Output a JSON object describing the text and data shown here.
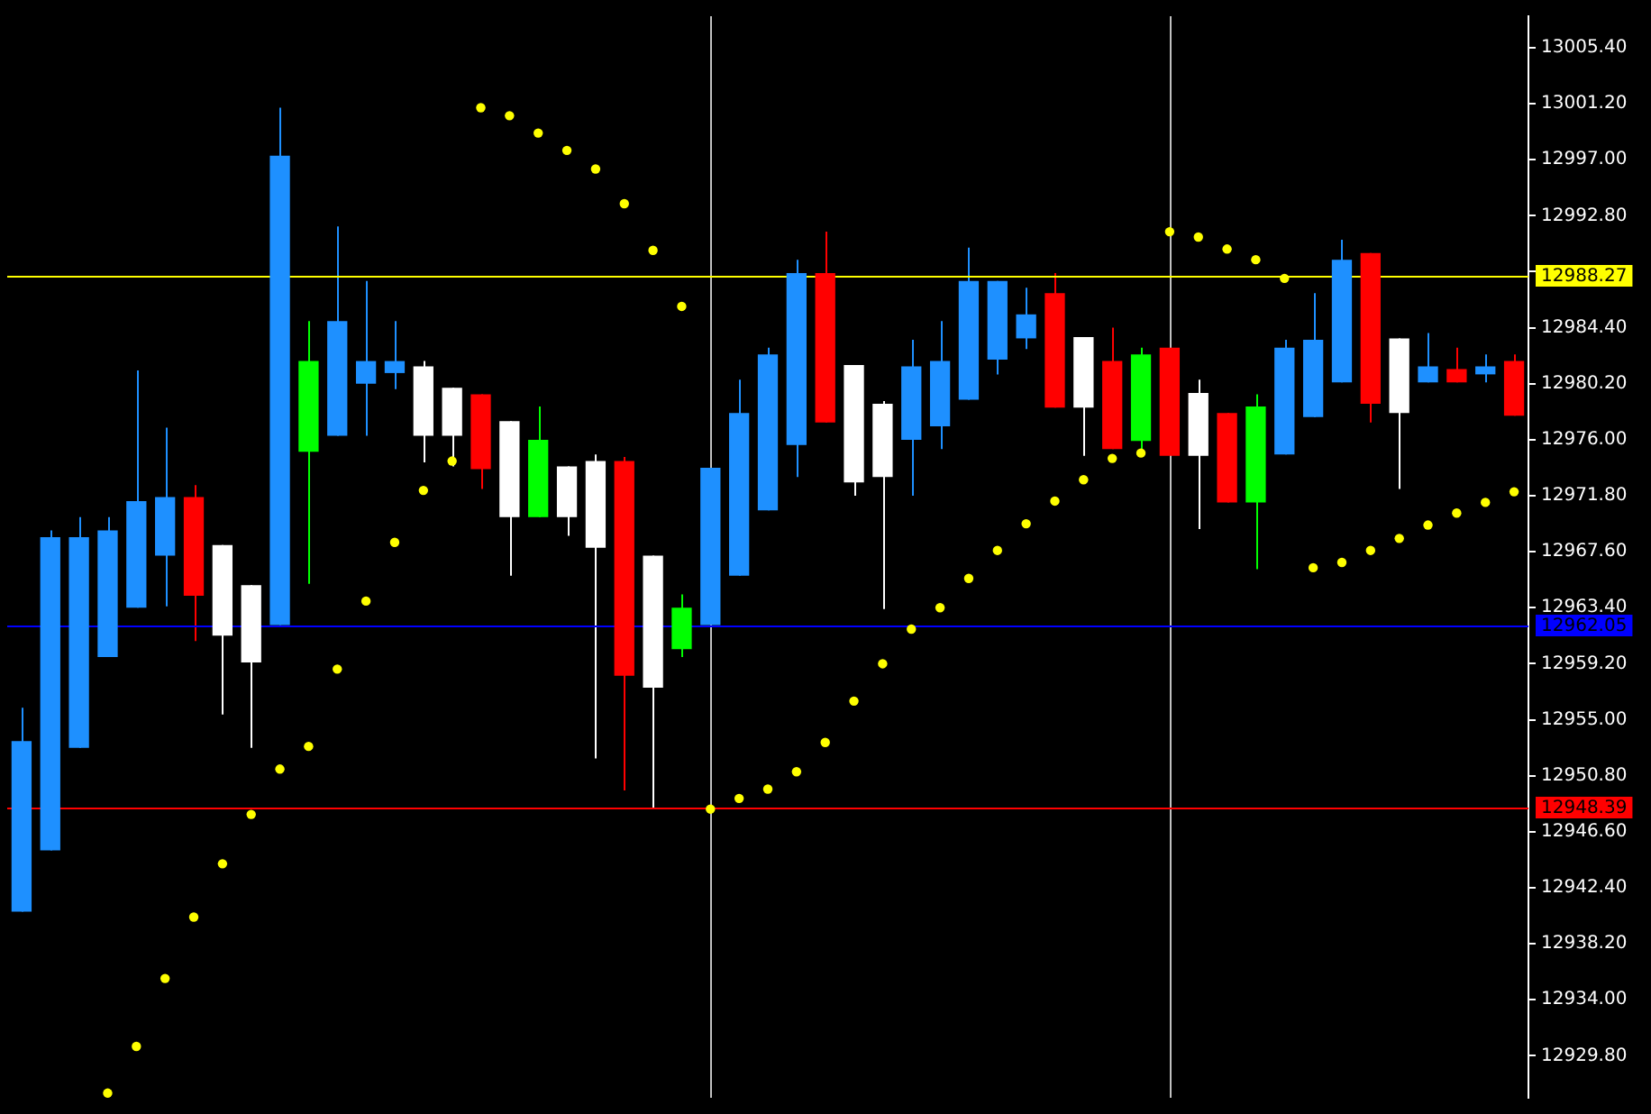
{
  "chart_data": {
    "type": "candlestick",
    "categories": [
      null,
      null,
      null,
      null,
      null,
      null,
      null,
      null,
      null,
      null,
      null,
      null,
      null,
      null,
      null,
      null,
      null,
      null,
      null,
      null,
      null,
      null,
      null,
      null,
      null,
      null,
      null,
      null,
      null,
      null,
      null,
      null,
      null,
      null,
      null,
      null,
      null,
      null,
      null,
      null,
      null,
      null,
      null,
      null,
      null,
      null,
      null,
      null,
      null,
      null,
      null,
      null,
      null
    ],
    "ohlc": [
      [
        12940.6,
        12955.9,
        12940.6,
        12953.4
      ],
      [
        12945.2,
        12969.2,
        12945.2,
        12968.7
      ],
      [
        12952.9,
        12970.2,
        12952.9,
        12968.7
      ],
      [
        12959.7,
        12970.2,
        12959.7,
        12969.2
      ],
      [
        12963.4,
        12981.2,
        12963.4,
        12971.4
      ],
      [
        12967.3,
        12976.9,
        12963.5,
        12971.7
      ],
      [
        12971.7,
        12972.6,
        12960.9,
        12964.3
      ],
      [
        12968.1,
        12968.1,
        12955.4,
        12961.3
      ],
      [
        12965.1,
        12965.1,
        12952.9,
        12959.3
      ],
      [
        12962.1,
        13000.9,
        12962.1,
        12997.3
      ],
      [
        12975.1,
        12984.9,
        12965.2,
        12981.9
      ],
      [
        12976.3,
        12992.0,
        12976.3,
        12984.9
      ],
      [
        12980.2,
        12987.9,
        12976.3,
        12981.9
      ],
      [
        12981.0,
        12984.9,
        12979.8,
        12981.9
      ],
      [
        12981.5,
        12981.9,
        12974.3,
        12976.3
      ],
      [
        12979.9,
        12979.9,
        12974.0,
        12976.3
      ],
      [
        12979.4,
        12979.4,
        12972.3,
        12973.8
      ],
      [
        12977.4,
        12977.4,
        12965.8,
        12970.2
      ],
      [
        12970.2,
        12978.5,
        12970.2,
        12976.0
      ],
      [
        12974.0,
        12974.0,
        12968.8,
        12970.2
      ],
      [
        12974.4,
        12974.9,
        12952.1,
        12967.9
      ],
      [
        12974.4,
        12974.7,
        12949.7,
        12958.3
      ],
      [
        12967.3,
        12967.3,
        12948.3,
        12957.4
      ],
      [
        12960.3,
        12964.4,
        12959.7,
        12963.4
      ],
      [
        12962.1,
        12973.9,
        12962.1,
        12973.9
      ],
      [
        12965.8,
        12980.5,
        12965.8,
        12978.0
      ],
      [
        12970.7,
        12982.9,
        12970.7,
        12982.4
      ],
      [
        12975.6,
        12989.5,
        12973.2,
        12988.5
      ],
      [
        12988.5,
        12991.6,
        12977.3,
        12977.3
      ],
      [
        12981.6,
        12981.6,
        12971.8,
        12972.8
      ],
      [
        12978.7,
        12978.9,
        12963.3,
        12973.2
      ],
      [
        12976.0,
        12983.5,
        12971.8,
        12981.5
      ],
      [
        12977.0,
        12984.9,
        12975.3,
        12981.9
      ],
      [
        12979.0,
        12990.4,
        12979.0,
        12987.9
      ],
      [
        12982.0,
        12987.9,
        12980.9,
        12987.9
      ],
      [
        12983.6,
        12987.4,
        12982.8,
        12985.4
      ],
      [
        12987.0,
        12988.5,
        12978.4,
        12978.4
      ],
      [
        12983.7,
        12983.7,
        12974.8,
        12978.4
      ],
      [
        12981.9,
        12984.4,
        12975.3,
        12975.3
      ],
      [
        12975.9,
        12982.9,
        12975.3,
        12982.4
      ],
      [
        12982.9,
        12982.9,
        12974.8,
        12974.8
      ],
      [
        12979.5,
        12980.5,
        12969.3,
        12974.8
      ],
      [
        12978.0,
        12978.0,
        12971.3,
        12971.3
      ],
      [
        12971.3,
        12979.4,
        12966.3,
        12978.5
      ],
      [
        12974.9,
        12983.5,
        12974.9,
        12982.9
      ],
      [
        12977.7,
        12987.0,
        12977.7,
        12983.5
      ],
      [
        12980.3,
        12991.0,
        12980.3,
        12989.5
      ],
      [
        12990.0,
        12990.0,
        12977.3,
        12978.7
      ],
      [
        12983.6,
        12983.6,
        12972.3,
        12978.0
      ],
      [
        12980.3,
        12984.0,
        12980.3,
        12981.5
      ],
      [
        12981.3,
        12982.9,
        12980.3,
        12980.3
      ],
      [
        12980.9,
        12982.4,
        12980.3,
        12981.5
      ],
      [
        12981.9,
        12982.4,
        12977.8,
        12977.8
      ]
    ],
    "colors": [
      "#1e90ff",
      "#1e90ff",
      "#1e90ff",
      "#1e90ff",
      "#1e90ff",
      "#1e90ff",
      "#ff0000",
      "#ffffff",
      "#ffffff",
      "#1e90ff",
      "#00ff00",
      "#1e90ff",
      "#1e90ff",
      "#1e90ff",
      "#ffffff",
      "#ffffff",
      "#ff0000",
      "#ffffff",
      "#00ff00",
      "#ffffff",
      "#ffffff",
      "#ff0000",
      "#ffffff",
      "#00ff00",
      "#1e90ff",
      "#1e90ff",
      "#1e90ff",
      "#1e90ff",
      "#ff0000",
      "#ffffff",
      "#ffffff",
      "#1e90ff",
      "#1e90ff",
      "#1e90ff",
      "#1e90ff",
      "#1e90ff",
      "#ff0000",
      "#ffffff",
      "#ff0000",
      "#00ff00",
      "#ff0000",
      "#ffffff",
      "#ff0000",
      "#00ff00",
      "#1e90ff",
      "#1e90ff",
      "#1e90ff",
      "#ff0000",
      "#ffffff",
      "#1e90ff",
      "#ff0000",
      "#1e90ff",
      "#ff0000"
    ],
    "series": [
      {
        "type": "scatter",
        "color": "#ffff00",
        "values": [
          null,
          null,
          null,
          12927.0,
          12930.5,
          12935.6,
          12940.2,
          12944.2,
          12947.9,
          12951.3,
          12953.0,
          12958.8,
          12963.9,
          12968.3,
          12972.2,
          12974.4,
          13000.9,
          13000.3,
          12999.0,
          12997.7,
          12996.3,
          12993.7,
          12990.2,
          12986.0,
          12948.3,
          12949.1,
          12949.8,
          12951.1,
          12953.3,
          12956.4,
          12959.2,
          12961.8,
          12963.4,
          12965.6,
          12967.7,
          12969.7,
          12971.4,
          12973.0,
          12974.6,
          12975.0,
          12991.6,
          12991.2,
          12990.3,
          12989.5,
          12988.1,
          12966.4,
          12966.8,
          12967.7,
          12968.6,
          12969.6,
          12970.5,
          12971.3,
          12972.1
        ]
      }
    ],
    "marker": "circle",
    "ylim": [
      12926.65,
      13007.76
    ],
    "yticks": [
      {
        "value": 13005.4,
        "label": "13005.40"
      },
      {
        "value": 13001.2,
        "label": "13001.20"
      },
      {
        "value": 12997.0,
        "label": "12997.00"
      },
      {
        "value": 12992.8,
        "label": "12992.80"
      },
      {
        "value": 12988.6,
        "label": null
      },
      {
        "value": 12984.4,
        "label": "12984.40"
      },
      {
        "value": 12980.2,
        "label": "12980.20"
      },
      {
        "value": 12976.0,
        "label": "12976.00"
      },
      {
        "value": 12971.8,
        "label": "12971.80"
      },
      {
        "value": 12967.6,
        "label": "12967.60"
      },
      {
        "value": 12963.4,
        "label": "12963.40"
      },
      {
        "value": 12959.2,
        "label": "12959.20"
      },
      {
        "value": 12955.0,
        "label": "12955.00"
      },
      {
        "value": 12950.8,
        "label": "12950.80"
      },
      {
        "value": 12946.6,
        "label": "12946.60"
      },
      {
        "value": 12942.4,
        "label": "12942.40"
      },
      {
        "value": 12938.2,
        "label": "12938.20"
      },
      {
        "value": 12934.0,
        "label": "12934.00"
      },
      {
        "value": 12929.8,
        "label": "12929.80"
      }
    ],
    "ref_lines": [
      {
        "axis": "y",
        "value": 12988.27,
        "label": "12988.27",
        "color": "#ffff00"
      },
      {
        "axis": "y",
        "value": 12962.05,
        "label": "12962.05",
        "color": "#0000ff"
      },
      {
        "axis": "y",
        "value": 12948.39,
        "label": "12948.39",
        "color": "#ff0000"
      }
    ],
    "grid": false,
    "legend": false
  }
}
